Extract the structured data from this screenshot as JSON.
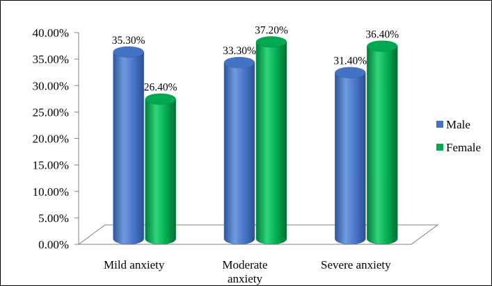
{
  "chart_data": {
    "type": "bar",
    "categories": [
      "Mild anxiety",
      "Moderate anxiety",
      "Severe anxiety"
    ],
    "category_lines": [
      [
        "Mild anxiety"
      ],
      [
        "Moderate",
        "anxiety"
      ],
      [
        "Severe anxiety"
      ]
    ],
    "series": [
      {
        "name": "Male",
        "values": [
          35.3,
          33.3,
          31.4
        ],
        "labels": [
          "35.30%",
          "33.30%",
          "31.40%"
        ],
        "color": "#4472C4"
      },
      {
        "name": "Female",
        "values": [
          26.4,
          37.2,
          36.4
        ],
        "labels": [
          "26.40%",
          "37.20%",
          "36.40%"
        ],
        "color": "#00A850"
      }
    ],
    "ylim": [
      0,
      40
    ],
    "yticks": [
      0,
      5,
      10,
      15,
      20,
      25,
      30,
      35,
      40
    ],
    "ytick_labels": [
      "0.00%",
      "5.00%",
      "10.00%",
      "15.00%",
      "20.00%",
      "25.00%",
      "30.00%",
      "35.00%",
      "40.00%"
    ],
    "legend_position": "right",
    "grid": false,
    "style": "3d-cylinder"
  }
}
